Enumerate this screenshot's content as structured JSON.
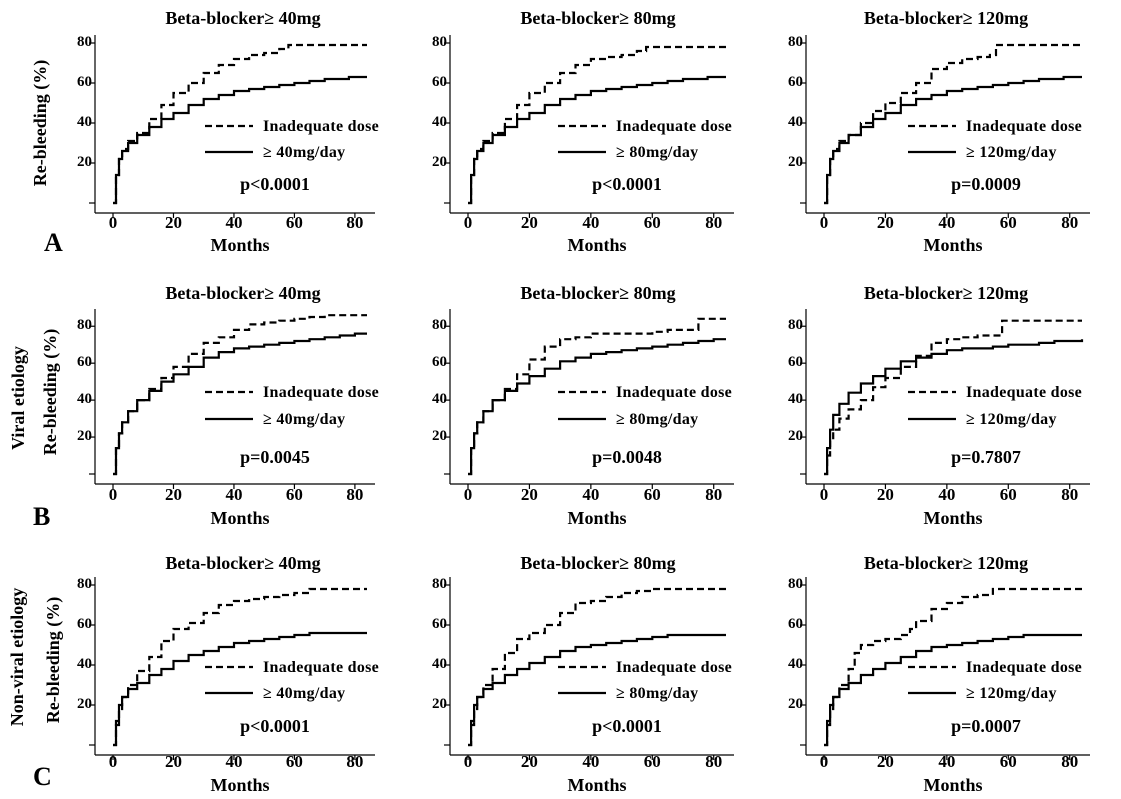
{
  "figure": {
    "rows": [
      {
        "letter": "A",
        "group_label": "",
        "ylabel": "Re-bleeding (%)"
      },
      {
        "letter": "B",
        "group_label": "Viral etiology",
        "ylabel": "Re-bleeding (%)"
      },
      {
        "letter": "C",
        "group_label": "Non-viral etiology",
        "ylabel": "Re-bleeding (%)"
      }
    ],
    "legend_dashed": "Inadequate  dose"
  },
  "chart_data": [
    {
      "type": "line",
      "title": "Beta-blocker≥ 40mg",
      "xlabel": "Months",
      "ylabel": "Re-bleeding (%)",
      "xlim": [
        0,
        84
      ],
      "ylim": [
        0,
        80
      ],
      "xticks": [
        "0",
        "20",
        "40",
        "60",
        "80"
      ],
      "yticks": [
        "20",
        "40",
        "60",
        "80"
      ],
      "series": [
        {
          "name": "Inadequate  dose",
          "style": "dashed",
          "x": [
            0,
            1,
            2,
            3,
            5,
            8,
            12,
            16,
            20,
            25,
            30,
            35,
            40,
            45,
            50,
            55,
            58,
            62,
            70,
            78,
            84
          ],
          "y": [
            0,
            14,
            22,
            27,
            31,
            35,
            42,
            49,
            55,
            60,
            65,
            69,
            72,
            74,
            75,
            77,
            79,
            79,
            79,
            79,
            79
          ]
        },
        {
          "name": "≥ 40mg/day",
          "style": "solid",
          "x": [
            0,
            1,
            2,
            3,
            5,
            8,
            12,
            16,
            20,
            25,
            30,
            35,
            40,
            45,
            50,
            55,
            60,
            65,
            70,
            75,
            78,
            84
          ],
          "y": [
            0,
            14,
            22,
            26,
            30,
            34,
            38,
            42,
            45,
            49,
            52,
            54,
            56,
            57,
            58,
            59,
            60,
            61,
            62,
            62,
            63,
            63
          ]
        }
      ],
      "pvalue": "p<0.0001"
    },
    {
      "type": "line",
      "title": "Beta-blocker≥ 80mg",
      "xlabel": "Months",
      "ylabel": "Re-bleeding (%)",
      "xlim": [
        0,
        84
      ],
      "ylim": [
        0,
        80
      ],
      "xticks": [
        "0",
        "20",
        "40",
        "60",
        "80"
      ],
      "yticks": [
        "20",
        "40",
        "60",
        "80"
      ],
      "series": [
        {
          "name": "Inadequate  dose",
          "style": "dashed",
          "x": [
            0,
            1,
            2,
            3,
            5,
            8,
            12,
            16,
            20,
            25,
            30,
            35,
            40,
            45,
            50,
            55,
            58,
            62,
            70,
            78,
            84
          ],
          "y": [
            0,
            14,
            22,
            27,
            31,
            35,
            42,
            49,
            55,
            60,
            65,
            69,
            72,
            73,
            74,
            76,
            78,
            78,
            78,
            78,
            78
          ]
        },
        {
          "name": "≥ 80mg/day",
          "style": "solid",
          "x": [
            0,
            1,
            2,
            3,
            5,
            8,
            12,
            16,
            20,
            25,
            30,
            35,
            40,
            45,
            50,
            55,
            60,
            65,
            70,
            75,
            78,
            84
          ],
          "y": [
            0,
            14,
            22,
            26,
            30,
            34,
            38,
            42,
            45,
            49,
            52,
            54,
            56,
            57,
            58,
            59,
            60,
            61,
            62,
            62,
            63,
            63
          ]
        }
      ],
      "pvalue": "p<0.0001"
    },
    {
      "type": "line",
      "title": "Beta-blocker≥ 120mg",
      "xlabel": "Months",
      "ylabel": "Re-bleeding (%)",
      "xlim": [
        0,
        84
      ],
      "ylim": [
        0,
        80
      ],
      "xticks": [
        "0",
        "20",
        "40",
        "60",
        "80"
      ],
      "yticks": [
        "20",
        "40",
        "60",
        "80"
      ],
      "series": [
        {
          "name": "Inadequate  dose",
          "style": "dashed",
          "x": [
            0,
            1,
            2,
            3,
            5,
            8,
            12,
            16,
            20,
            25,
            30,
            35,
            40,
            45,
            50,
            54,
            56,
            60,
            70,
            78,
            84
          ],
          "y": [
            0,
            14,
            22,
            27,
            31,
            34,
            40,
            46,
            50,
            55,
            60,
            67,
            70,
            72,
            73,
            74,
            79,
            79,
            79,
            79,
            79
          ]
        },
        {
          "name": "≥ 120mg/day",
          "style": "solid",
          "x": [
            0,
            1,
            2,
            3,
            5,
            8,
            12,
            16,
            20,
            25,
            30,
            35,
            40,
            45,
            50,
            55,
            60,
            65,
            70,
            75,
            78,
            84
          ],
          "y": [
            0,
            14,
            22,
            26,
            30,
            34,
            38,
            42,
            45,
            49,
            52,
            54,
            56,
            57,
            58,
            59,
            60,
            61,
            62,
            62,
            63,
            63
          ]
        }
      ],
      "pvalue": "p=0.0009"
    },
    {
      "type": "line",
      "title": "Beta-blocker≥ 40mg",
      "xlabel": "Months",
      "ylabel": "Re-bleeding (%)",
      "xlim": [
        0,
        84
      ],
      "ylim": [
        0,
        85
      ],
      "xticks": [
        "0",
        "20",
        "40",
        "60",
        "80"
      ],
      "yticks": [
        "20",
        "40",
        "60",
        "80"
      ],
      "series": [
        {
          "name": "Inadequate  dose",
          "style": "dashed",
          "x": [
            0,
            1,
            2,
            3,
            5,
            8,
            12,
            16,
            20,
            25,
            30,
            35,
            40,
            45,
            50,
            55,
            60,
            65,
            70,
            75,
            80,
            84
          ],
          "y": [
            0,
            14,
            22,
            28,
            34,
            40,
            46,
            52,
            58,
            65,
            71,
            74,
            78,
            81,
            82,
            83,
            84,
            85,
            86,
            86,
            86,
            86
          ]
        },
        {
          "name": "≥ 40mg/day",
          "style": "solid",
          "x": [
            0,
            1,
            2,
            3,
            5,
            8,
            12,
            16,
            20,
            25,
            30,
            35,
            40,
            45,
            50,
            55,
            60,
            65,
            70,
            75,
            80,
            84
          ],
          "y": [
            0,
            14,
            22,
            28,
            34,
            40,
            45,
            50,
            54,
            58,
            63,
            66,
            68,
            69,
            70,
            71,
            72,
            73,
            74,
            75,
            76,
            76
          ]
        }
      ],
      "pvalue": "p=0.0045"
    },
    {
      "type": "line",
      "title": "Beta-blocker≥ 80mg",
      "xlabel": "Months",
      "ylabel": "Re-bleeding (%)",
      "xlim": [
        0,
        84
      ],
      "ylim": [
        0,
        85
      ],
      "xticks": [
        "0",
        "20",
        "40",
        "60",
        "80"
      ],
      "yticks": [
        "20",
        "40",
        "60",
        "80"
      ],
      "series": [
        {
          "name": "Inadequate  dose",
          "style": "dashed",
          "x": [
            0,
            1,
            2,
            3,
            5,
            8,
            12,
            16,
            20,
            25,
            30,
            35,
            40,
            45,
            50,
            55,
            60,
            65,
            70,
            74,
            75,
            80,
            84
          ],
          "y": [
            0,
            14,
            22,
            28,
            34,
            40,
            46,
            54,
            62,
            69,
            73,
            74,
            76,
            76,
            76,
            76,
            77,
            78,
            78,
            78,
            84,
            84,
            84
          ]
        },
        {
          "name": "≥ 80mg/day",
          "style": "solid",
          "x": [
            0,
            1,
            2,
            3,
            5,
            8,
            12,
            16,
            20,
            25,
            30,
            35,
            40,
            45,
            50,
            55,
            60,
            65,
            70,
            75,
            80,
            84
          ],
          "y": [
            0,
            14,
            22,
            28,
            34,
            40,
            45,
            49,
            53,
            57,
            61,
            63,
            65,
            66,
            67,
            68,
            69,
            70,
            71,
            72,
            73,
            73
          ]
        }
      ],
      "pvalue": "p=0.0048"
    },
    {
      "type": "line",
      "title": "Beta-blocker≥ 120mg",
      "xlabel": "Months",
      "ylabel": "Re-bleeding (%)",
      "xlim": [
        0,
        84
      ],
      "ylim": [
        0,
        85
      ],
      "xticks": [
        "0",
        "20",
        "40",
        "60",
        "80"
      ],
      "yticks": [
        "20",
        "40",
        "60",
        "80"
      ],
      "series": [
        {
          "name": "Inadequate  dose",
          "style": "dashed",
          "x": [
            0,
            1,
            2,
            3,
            5,
            8,
            12,
            16,
            20,
            25,
            30,
            35,
            40,
            45,
            50,
            55,
            57,
            58,
            70,
            84
          ],
          "y": [
            0,
            10,
            18,
            24,
            30,
            35,
            40,
            47,
            52,
            58,
            64,
            71,
            73,
            74,
            75,
            75,
            75,
            83,
            83,
            83
          ]
        },
        {
          "name": "≥ 120mg/day",
          "style": "solid",
          "x": [
            0,
            1,
            2,
            3,
            5,
            8,
            12,
            16,
            20,
            25,
            30,
            35,
            40,
            45,
            50,
            55,
            60,
            65,
            70,
            75,
            80,
            84
          ],
          "y": [
            0,
            14,
            24,
            32,
            38,
            44,
            49,
            53,
            57,
            61,
            63,
            65,
            67,
            68,
            68,
            69,
            70,
            70,
            71,
            72,
            72,
            73
          ]
        }
      ],
      "pvalue": "p=0.7807"
    },
    {
      "type": "line",
      "title": "Beta-blocker≥ 40mg",
      "xlabel": "Months",
      "ylabel": "Re-bleeding (%)",
      "xlim": [
        0,
        84
      ],
      "ylim": [
        0,
        80
      ],
      "xticks": [
        "0",
        "20",
        "40",
        "60",
        "80"
      ],
      "yticks": [
        "20",
        "40",
        "60",
        "80"
      ],
      "series": [
        {
          "name": "Inadequate  dose",
          "style": "dashed",
          "x": [
            0,
            1,
            2,
            3,
            5,
            8,
            12,
            16,
            20,
            25,
            30,
            35,
            40,
            45,
            50,
            55,
            60,
            65,
            70,
            78,
            84
          ],
          "y": [
            0,
            10,
            18,
            24,
            30,
            37,
            44,
            52,
            58,
            61,
            66,
            70,
            72,
            73,
            74,
            75,
            76,
            78,
            78,
            78,
            78
          ]
        },
        {
          "name": "≥ 40mg/day",
          "style": "solid",
          "x": [
            0,
            1,
            2,
            3,
            5,
            8,
            12,
            16,
            20,
            25,
            30,
            35,
            40,
            45,
            50,
            55,
            60,
            65,
            70,
            78,
            84
          ],
          "y": [
            0,
            12,
            20,
            24,
            28,
            31,
            35,
            38,
            42,
            45,
            47,
            49,
            51,
            52,
            53,
            54,
            55,
            56,
            56,
            56,
            56
          ]
        }
      ],
      "pvalue": "p<0.0001"
    },
    {
      "type": "line",
      "title": "Beta-blocker≥ 80mg",
      "xlabel": "Months",
      "ylabel": "Re-bleeding (%)",
      "xlim": [
        0,
        84
      ],
      "ylim": [
        0,
        80
      ],
      "xticks": [
        "0",
        "20",
        "40",
        "60",
        "80"
      ],
      "yticks": [
        "20",
        "40",
        "60",
        "80"
      ],
      "series": [
        {
          "name": "Inadequate  dose",
          "style": "dashed",
          "x": [
            0,
            1,
            2,
            3,
            5,
            8,
            12,
            16,
            20,
            25,
            30,
            35,
            40,
            45,
            50,
            55,
            60,
            65,
            70,
            78,
            84
          ],
          "y": [
            0,
            10,
            18,
            24,
            30,
            38,
            46,
            53,
            56,
            60,
            66,
            71,
            72,
            74,
            76,
            77,
            78,
            78,
            78,
            78,
            78
          ]
        },
        {
          "name": "≥ 80mg/day",
          "style": "solid",
          "x": [
            0,
            1,
            2,
            3,
            5,
            8,
            12,
            16,
            20,
            25,
            30,
            35,
            40,
            45,
            50,
            55,
            60,
            65,
            70,
            78,
            84
          ],
          "y": [
            0,
            12,
            20,
            24,
            28,
            31,
            35,
            38,
            41,
            44,
            47,
            49,
            50,
            51,
            52,
            53,
            54,
            55,
            55,
            55,
            55
          ]
        }
      ],
      "pvalue": "p<0.0001"
    },
    {
      "type": "line",
      "title": "Beta-blocker≥ 120mg",
      "xlabel": "Months",
      "ylabel": "Re-bleeding (%)",
      "xlim": [
        0,
        84
      ],
      "ylim": [
        0,
        80
      ],
      "xticks": [
        "0",
        "20",
        "40",
        "60",
        "80"
      ],
      "yticks": [
        "20",
        "40",
        "60",
        "80"
      ],
      "series": [
        {
          "name": "Inadequate  dose",
          "style": "dashed",
          "x": [
            0,
            1,
            2,
            3,
            5,
            8,
            10,
            12,
            16,
            20,
            25,
            28,
            30,
            35,
            40,
            45,
            50,
            55,
            60,
            65,
            70,
            78,
            84
          ],
          "y": [
            0,
            10,
            18,
            24,
            30,
            38,
            46,
            50,
            52,
            53,
            55,
            58,
            62,
            68,
            71,
            74,
            75,
            78,
            78,
            78,
            78,
            78,
            78
          ]
        },
        {
          "name": "≥ 120mg/day",
          "style": "solid",
          "x": [
            0,
            1,
            2,
            3,
            5,
            8,
            12,
            16,
            20,
            25,
            30,
            35,
            40,
            45,
            50,
            55,
            60,
            65,
            70,
            78,
            84
          ],
          "y": [
            0,
            12,
            20,
            24,
            28,
            31,
            35,
            38,
            41,
            44,
            47,
            49,
            50,
            51,
            52,
            53,
            54,
            55,
            55,
            55,
            55
          ]
        }
      ],
      "pvalue": "p=0.0007"
    }
  ]
}
